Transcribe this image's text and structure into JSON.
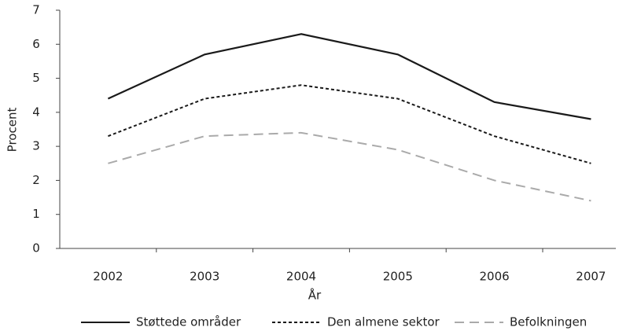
{
  "chart_data": {
    "type": "line",
    "categories": [
      "2002",
      "2003",
      "2004",
      "2005",
      "2006",
      "2007"
    ],
    "series": [
      {
        "name": "Støttede områder",
        "color": "#1a1a1a",
        "dash": "solid",
        "values": [
          4.4,
          5.7,
          6.3,
          5.7,
          4.3,
          3.8
        ]
      },
      {
        "name": "Den almene sektor",
        "color": "#1a1a1a",
        "dash": "dotted",
        "values": [
          3.3,
          4.4,
          4.8,
          4.4,
          3.3,
          2.5
        ]
      },
      {
        "name": "Befolkningen",
        "color": "#aaaaaa",
        "dash": "dashed",
        "values": [
          2.5,
          3.3,
          3.4,
          2.9,
          2.0,
          1.4
        ]
      }
    ],
    "ylabel": "Procent",
    "xlabel": "År",
    "ylim": [
      0,
      7
    ],
    "yticks": [
      0,
      1,
      2,
      3,
      4,
      5,
      6,
      7
    ],
    "grid": false,
    "legend": "bottom"
  }
}
